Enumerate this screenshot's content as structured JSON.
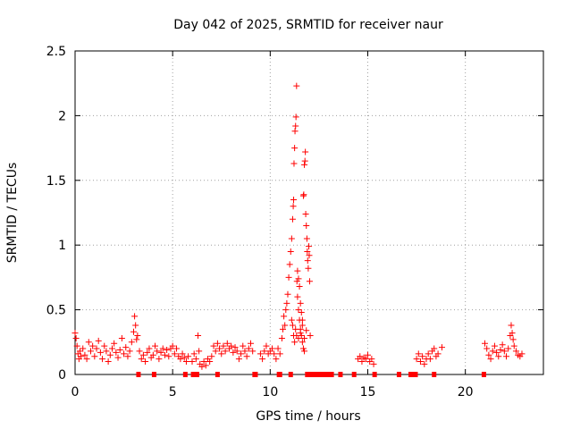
{
  "chart_data": {
    "type": "scatter",
    "title": "Day 042 of 2025, SRMTID for receiver naur",
    "xlabel": "GPS time / hours",
    "ylabel": "SRMTID / TECUs",
    "xlim": [
      0,
      24
    ],
    "ylim": [
      0,
      2.5
    ],
    "xticks": [
      0,
      5,
      10,
      15,
      20
    ],
    "xtick_labels": [
      "0",
      "5",
      "10",
      "15",
      "20"
    ],
    "yticks": [
      0,
      0.5,
      1,
      1.5,
      2,
      2.5
    ],
    "ytick_labels": [
      "0",
      "0.5",
      "1",
      "1.5",
      "2",
      "2.5"
    ],
    "grid": true,
    "marker": "+",
    "color": "#ff0000",
    "series": [
      {
        "name": "SRMTID",
        "points": [
          [
            0.0,
            0.32
          ],
          [
            0.05,
            0.28
          ],
          [
            0.1,
            0.22
          ],
          [
            0.15,
            0.16
          ],
          [
            0.2,
            0.12
          ],
          [
            0.25,
            0.18
          ],
          [
            0.3,
            0.14
          ],
          [
            0.4,
            0.2
          ],
          [
            0.5,
            0.15
          ],
          [
            0.6,
            0.12
          ],
          [
            0.7,
            0.25
          ],
          [
            0.8,
            0.18
          ],
          [
            0.9,
            0.22
          ],
          [
            1.0,
            0.14
          ],
          [
            1.1,
            0.2
          ],
          [
            1.2,
            0.26
          ],
          [
            1.3,
            0.17
          ],
          [
            1.4,
            0.12
          ],
          [
            1.5,
            0.22
          ],
          [
            1.6,
            0.18
          ],
          [
            1.7,
            0.1
          ],
          [
            1.8,
            0.15
          ],
          [
            1.9,
            0.2
          ],
          [
            2.0,
            0.24
          ],
          [
            2.1,
            0.17
          ],
          [
            2.2,
            0.13
          ],
          [
            2.3,
            0.19
          ],
          [
            2.4,
            0.28
          ],
          [
            2.5,
            0.16
          ],
          [
            2.6,
            0.21
          ],
          [
            2.7,
            0.14
          ],
          [
            2.8,
            0.18
          ],
          [
            2.9,
            0.25
          ],
          [
            3.0,
            0.33
          ],
          [
            3.05,
            0.45
          ],
          [
            3.1,
            0.38
          ],
          [
            3.15,
            0.27
          ],
          [
            3.2,
            0.3
          ],
          [
            3.3,
            0.18
          ],
          [
            3.4,
            0.12
          ],
          [
            3.5,
            0.15
          ],
          [
            3.6,
            0.1
          ],
          [
            3.7,
            0.17
          ],
          [
            3.8,
            0.2
          ],
          [
            3.9,
            0.13
          ],
          [
            4.0,
            0.15
          ],
          [
            4.1,
            0.22
          ],
          [
            4.2,
            0.18
          ],
          [
            4.3,
            0.12
          ],
          [
            4.4,
            0.17
          ],
          [
            4.5,
            0.2
          ],
          [
            4.6,
            0.15
          ],
          [
            4.7,
            0.19
          ],
          [
            4.8,
            0.14
          ],
          [
            4.9,
            0.2
          ],
          [
            5.0,
            0.22
          ],
          [
            5.1,
            0.16
          ],
          [
            5.2,
            0.2
          ],
          [
            5.3,
            0.14
          ],
          [
            5.4,
            0.12
          ],
          [
            5.5,
            0.16
          ],
          [
            5.6,
            0.13
          ],
          [
            5.7,
            0.1
          ],
          [
            5.8,
            0.14
          ],
          [
            6.0,
            0.1
          ],
          [
            6.1,
            0.16
          ],
          [
            6.2,
            0.12
          ],
          [
            6.3,
            0.3
          ],
          [
            6.35,
            0.18
          ],
          [
            6.4,
            0.08
          ],
          [
            6.5,
            0.06
          ],
          [
            6.6,
            0.1
          ],
          [
            6.7,
            0.07
          ],
          [
            6.8,
            0.12
          ],
          [
            6.9,
            0.1
          ],
          [
            7.0,
            0.14
          ],
          [
            7.1,
            0.22
          ],
          [
            7.2,
            0.18
          ],
          [
            7.3,
            0.24
          ],
          [
            7.4,
            0.2
          ],
          [
            7.5,
            0.16
          ],
          [
            7.6,
            0.22
          ],
          [
            7.7,
            0.18
          ],
          [
            7.8,
            0.24
          ],
          [
            7.9,
            0.2
          ],
          [
            8.0,
            0.22
          ],
          [
            8.1,
            0.17
          ],
          [
            8.2,
            0.21
          ],
          [
            8.3,
            0.18
          ],
          [
            8.4,
            0.12
          ],
          [
            8.5,
            0.16
          ],
          [
            8.6,
            0.22
          ],
          [
            8.7,
            0.18
          ],
          [
            8.8,
            0.14
          ],
          [
            8.9,
            0.2
          ],
          [
            9.0,
            0.24
          ],
          [
            9.1,
            0.18
          ],
          [
            9.5,
            0.16
          ],
          [
            9.6,
            0.12
          ],
          [
            9.7,
            0.18
          ],
          [
            9.8,
            0.22
          ],
          [
            9.9,
            0.16
          ],
          [
            10.0,
            0.18
          ],
          [
            10.1,
            0.2
          ],
          [
            10.2,
            0.16
          ],
          [
            10.3,
            0.12
          ],
          [
            10.4,
            0.2
          ],
          [
            10.5,
            0.16
          ],
          [
            10.6,
            0.28
          ],
          [
            10.65,
            0.35
          ],
          [
            10.7,
            0.45
          ],
          [
            10.75,
            0.38
          ],
          [
            10.8,
            0.5
          ],
          [
            10.85,
            0.55
          ],
          [
            10.9,
            0.62
          ],
          [
            10.95,
            0.75
          ],
          [
            11.0,
            0.85
          ],
          [
            11.05,
            0.95
          ],
          [
            11.1,
            1.05
          ],
          [
            11.15,
            1.2
          ],
          [
            11.18,
            1.3
          ],
          [
            11.2,
            1.35
          ],
          [
            11.22,
            1.63
          ],
          [
            11.25,
            1.75
          ],
          [
            11.27,
            1.88
          ],
          [
            11.3,
            1.92
          ],
          [
            11.32,
            1.99
          ],
          [
            11.35,
            2.23
          ],
          [
            11.37,
            0.72
          ],
          [
            11.4,
            0.6
          ],
          [
            11.45,
            0.5
          ],
          [
            11.5,
            0.42
          ],
          [
            11.55,
            0.35
          ],
          [
            11.6,
            0.3
          ],
          [
            11.65,
            0.25
          ],
          [
            11.7,
            0.2
          ],
          [
            11.75,
            0.18
          ],
          [
            11.4,
            0.8
          ],
          [
            11.45,
            0.74
          ],
          [
            11.5,
            0.68
          ],
          [
            11.55,
            0.55
          ],
          [
            11.6,
            0.48
          ],
          [
            11.65,
            0.42
          ],
          [
            11.7,
            1.38
          ],
          [
            11.72,
            1.39
          ],
          [
            11.75,
            1.62
          ],
          [
            11.78,
            1.65
          ],
          [
            11.8,
            1.72
          ],
          [
            11.82,
            1.24
          ],
          [
            11.85,
            1.15
          ],
          [
            11.88,
            1.05
          ],
          [
            11.9,
            0.95
          ],
          [
            11.92,
            0.88
          ],
          [
            11.95,
            0.82
          ],
          [
            11.98,
            0.99
          ],
          [
            12.0,
            0.92
          ],
          [
            12.02,
            0.72
          ],
          [
            11.1,
            0.42
          ],
          [
            11.15,
            0.38
          ],
          [
            11.2,
            0.3
          ],
          [
            11.25,
            0.25
          ],
          [
            11.3,
            0.35
          ],
          [
            11.35,
            0.3
          ],
          [
            11.45,
            0.28
          ],
          [
            11.55,
            0.32
          ],
          [
            11.65,
            0.38
          ],
          [
            11.75,
            0.28
          ],
          [
            11.85,
            0.34
          ],
          [
            12.05,
            0.3
          ],
          [
            14.5,
            0.12
          ],
          [
            14.6,
            0.14
          ],
          [
            14.7,
            0.1
          ],
          [
            14.8,
            0.13
          ],
          [
            14.9,
            0.12
          ],
          [
            15.0,
            0.15
          ],
          [
            15.1,
            0.1
          ],
          [
            15.2,
            0.12
          ],
          [
            15.3,
            0.08
          ],
          [
            17.5,
            0.12
          ],
          [
            17.6,
            0.16
          ],
          [
            17.7,
            0.1
          ],
          [
            17.8,
            0.14
          ],
          [
            17.9,
            0.08
          ],
          [
            18.0,
            0.12
          ],
          [
            18.1,
            0.16
          ],
          [
            18.2,
            0.12
          ],
          [
            18.3,
            0.18
          ],
          [
            18.4,
            0.2
          ],
          [
            18.5,
            0.14
          ],
          [
            18.6,
            0.16
          ],
          [
            18.8,
            0.21
          ],
          [
            21.0,
            0.24
          ],
          [
            21.1,
            0.2
          ],
          [
            21.2,
            0.15
          ],
          [
            21.3,
            0.12
          ],
          [
            21.4,
            0.18
          ],
          [
            21.5,
            0.22
          ],
          [
            21.6,
            0.17
          ],
          [
            21.7,
            0.14
          ],
          [
            21.8,
            0.19
          ],
          [
            21.9,
            0.23
          ],
          [
            22.0,
            0.18
          ],
          [
            22.1,
            0.14
          ],
          [
            22.2,
            0.2
          ],
          [
            22.3,
            0.3
          ],
          [
            22.35,
            0.38
          ],
          [
            22.4,
            0.32
          ],
          [
            22.45,
            0.27
          ],
          [
            22.5,
            0.22
          ],
          [
            22.6,
            0.18
          ],
          [
            22.7,
            0.15
          ],
          [
            22.8,
            0.14
          ],
          [
            22.9,
            0.16
          ]
        ]
      }
    ],
    "zero_markers": [
      3.25,
      4.05,
      5.65,
      6.05,
      6.1,
      6.2,
      6.25,
      7.3,
      9.2,
      9.25,
      10.45,
      10.5,
      11.05,
      11.9,
      12.0,
      12.2,
      12.4,
      12.55,
      12.7,
      12.85,
      13.0,
      13.15,
      13.6,
      14.3,
      15.35,
      16.6,
      17.2,
      17.3,
      17.45,
      18.4,
      20.95
    ]
  }
}
